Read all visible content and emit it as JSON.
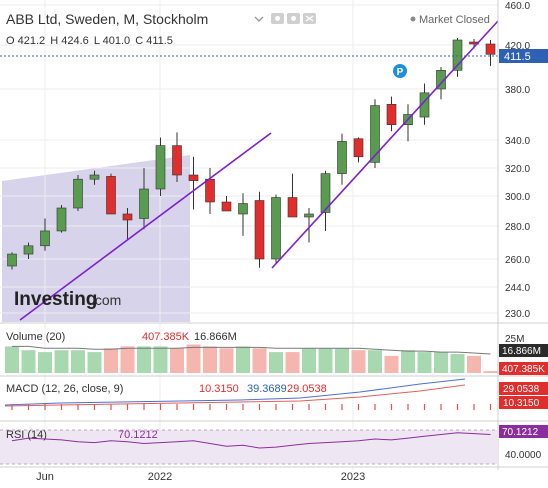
{
  "header": {
    "symbol_title": "ABB Ltd, Sweden, M, Stockholm",
    "market_status": "Market Closed",
    "ohlc": {
      "o_label": "O",
      "o": "421.2",
      "h_label": "H",
      "h": "424.6",
      "l_label": "L",
      "l": "401.0",
      "c_label": "C",
      "c": "411.5"
    },
    "icons": [
      "chevron-down-icon",
      "eye-icon",
      "gear-icon",
      "close-icon"
    ]
  },
  "branding": {
    "logo_text": "Investing",
    "logo_suffix": ".com"
  },
  "colors": {
    "up": "#5a9c4f",
    "down": "#e22d2d",
    "trendline": "#7c1fd6",
    "shade": "#d6d3ea",
    "price_tag": "#2e61b3",
    "macd": "#4d6fd6",
    "signal": "#e0605a",
    "rsi": "#8b2d9c"
  },
  "chart_data": {
    "type": "candlestick",
    "y_range": [
      226,
      462
    ],
    "y_ticks": [
      "460.0",
      "420.0",
      "380.0",
      "340.0",
      "320.0",
      "300.0",
      "280.0",
      "260.0",
      "244.0",
      "230.0"
    ],
    "last_price": "411.5",
    "x_ticks": [
      "Jun",
      "2022",
      "2023"
    ],
    "candles": [
      {
        "o": 256,
        "h": 264,
        "l": 254,
        "c": 263
      },
      {
        "o": 263,
        "h": 270,
        "l": 260,
        "c": 268
      },
      {
        "o": 268,
        "h": 285,
        "l": 265,
        "c": 277
      },
      {
        "o": 277,
        "h": 294,
        "l": 276,
        "c": 292
      },
      {
        "o": 292,
        "h": 315,
        "l": 290,
        "c": 312
      },
      {
        "o": 312,
        "h": 318,
        "l": 308,
        "c": 315
      },
      {
        "o": 314,
        "h": 316,
        "l": 290,
        "c": 288
      },
      {
        "o": 288,
        "h": 292,
        "l": 272,
        "c": 284
      },
      {
        "o": 285,
        "h": 320,
        "l": 278,
        "c": 305
      },
      {
        "o": 305,
        "h": 342,
        "l": 300,
        "c": 336
      },
      {
        "o": 336,
        "h": 346,
        "l": 310,
        "c": 315
      },
      {
        "o": 315,
        "h": 328,
        "l": 291,
        "c": 311
      },
      {
        "o": 312,
        "h": 320,
        "l": 288,
        "c": 296
      },
      {
        "o": 296,
        "h": 300,
        "l": 290,
        "c": 290
      },
      {
        "o": 288,
        "h": 302,
        "l": 274,
        "c": 295
      },
      {
        "o": 297,
        "h": 303,
        "l": 255,
        "c": 260
      },
      {
        "o": 260,
        "h": 301,
        "l": 258,
        "c": 299
      },
      {
        "o": 299,
        "h": 316,
        "l": 286,
        "c": 286
      },
      {
        "o": 286,
        "h": 292,
        "l": 270,
        "c": 288
      },
      {
        "o": 289,
        "h": 318,
        "l": 277,
        "c": 316
      },
      {
        "o": 316,
        "h": 345,
        "l": 308,
        "c": 339
      },
      {
        "o": 341,
        "h": 342,
        "l": 324,
        "c": 328
      },
      {
        "o": 324,
        "h": 372,
        "l": 320,
        "c": 367
      },
      {
        "o": 368,
        "h": 374,
        "l": 347,
        "c": 352
      },
      {
        "o": 352,
        "h": 368,
        "l": 339,
        "c": 360
      },
      {
        "o": 358,
        "h": 385,
        "l": 352,
        "c": 377
      },
      {
        "o": 380,
        "h": 400,
        "l": 372,
        "c": 397
      },
      {
        "o": 397,
        "h": 427,
        "l": 391,
        "c": 425
      },
      {
        "o": 423,
        "h": 426,
        "l": 417,
        "c": 421
      },
      {
        "o": 421,
        "h": 425,
        "l": 401,
        "c": 411.5
      }
    ],
    "volume": {
      "label": "Volume (20)",
      "value_red": "407.385K",
      "value_ma": "16.866M",
      "axis_ticks": [
        "25M"
      ],
      "right_tags": [
        "16.866M",
        "407.385K"
      ],
      "bars": [
        14,
        12,
        11,
        12,
        12,
        11,
        13,
        14,
        14,
        14,
        13,
        15,
        14,
        13,
        14,
        13,
        11,
        11,
        13,
        13,
        13,
        12,
        12,
        9,
        12,
        11,
        11,
        10,
        9,
        1
      ],
      "ma": [
        14,
        14,
        13,
        13,
        13,
        12.5,
        12.5,
        13,
        13,
        13,
        13,
        13.5,
        13.5,
        13.5,
        13.5,
        13.5,
        13,
        13,
        13,
        13,
        13,
        13,
        12.5,
        12,
        11.5,
        11.5,
        11,
        11,
        10.5,
        10
      ]
    },
    "macd": {
      "label": "MACD (12, 26, close, 9)",
      "histogram_value": "10.3150",
      "macd_value": "39.3689",
      "signal_value": "29.0538",
      "right_tags": [
        "29.0538",
        "10.3150"
      ]
    },
    "rsi": {
      "label": "RSI (14)",
      "value": "70.1212",
      "axis_ticks": [
        "40.0000"
      ],
      "right_tag": "70.1212",
      "values": [
        63,
        66,
        65,
        64,
        62,
        61,
        63,
        62,
        60,
        61,
        62,
        63,
        60,
        57,
        58,
        55,
        56,
        58,
        60,
        61,
        62,
        63,
        65,
        64,
        66,
        68,
        70,
        72,
        71,
        70
      ]
    },
    "annotation_badge": "P"
  }
}
